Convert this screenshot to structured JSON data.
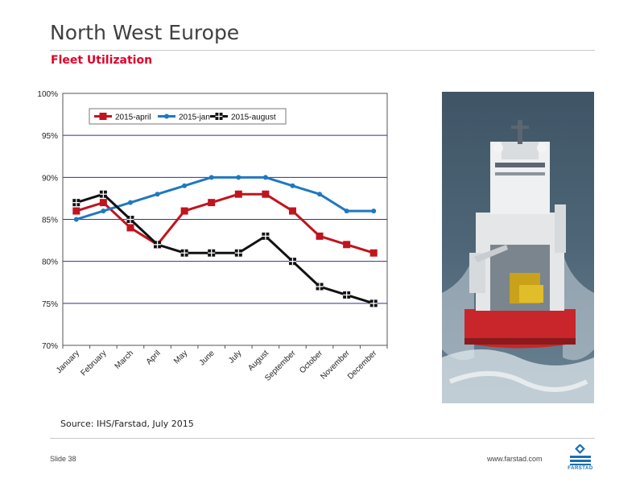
{
  "slide": {
    "title": "North West Europe",
    "subtitle": "Fleet Utilization",
    "source": "Source: IHS/Farstad, July 2015",
    "slide_number": "Slide 38",
    "website": "www.farstad.com",
    "logo_text": "FARSTAD"
  },
  "colors": {
    "title": "#404040",
    "accent": "#e1002a",
    "gridline": "#2e2e9a",
    "logo": "#1a6fb3"
  },
  "chart_data": {
    "type": "line",
    "categories": [
      "January",
      "February",
      "March",
      "April",
      "May",
      "June",
      "July",
      "August",
      "September",
      "October",
      "November",
      "December"
    ],
    "ylim": [
      70,
      100
    ],
    "yticks": [
      70,
      75,
      80,
      85,
      90,
      95,
      100
    ],
    "ytick_labels": [
      "70%",
      "75%",
      "80%",
      "85%",
      "90%",
      "95%",
      "100%"
    ],
    "grid": true,
    "legend_position": "top-left",
    "series": [
      {
        "name": "2015-april",
        "color": "#c0141e",
        "marker": "square",
        "values": [
          86,
          87,
          84,
          82,
          86,
          87,
          88,
          88,
          86,
          83,
          82,
          81
        ]
      },
      {
        "name": "2015-jan",
        "color": "#1f78c1",
        "marker": "circle",
        "values": [
          85,
          86,
          87,
          88,
          89,
          90,
          90,
          90,
          89,
          88,
          86,
          86
        ]
      },
      {
        "name": "2015-august",
        "color": "#111111",
        "marker": "square-cross",
        "values": [
          87,
          88,
          85,
          82,
          81,
          81,
          81,
          83,
          80,
          77,
          76,
          75
        ]
      }
    ]
  }
}
